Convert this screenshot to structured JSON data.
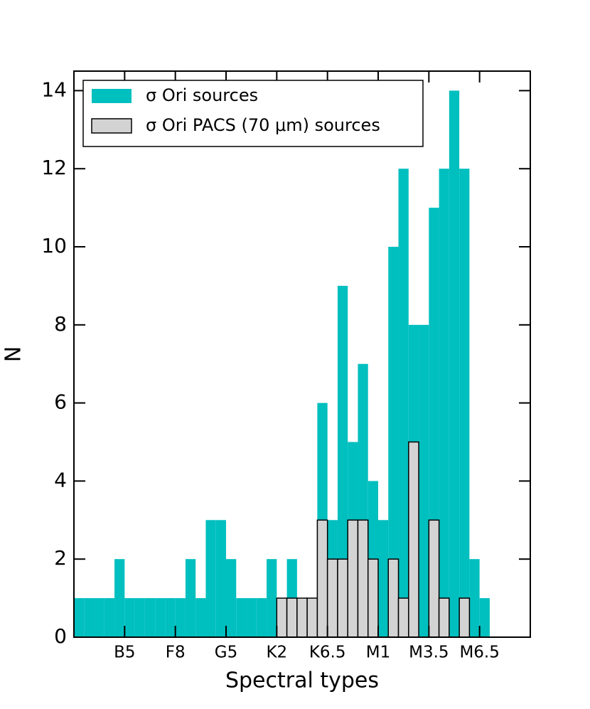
{
  "chart_data": {
    "type": "histogram",
    "xlabel": "Spectral types",
    "ylabel": "N",
    "bins": [
      0,
      1,
      2,
      3,
      4,
      5,
      6,
      7,
      8,
      9,
      10,
      11,
      12,
      13,
      14,
      15,
      16,
      17,
      18,
      19,
      20,
      21,
      22,
      23,
      24,
      25,
      26,
      27,
      28,
      29,
      30,
      31,
      32,
      33,
      34,
      35,
      36,
      37,
      38,
      39,
      40,
      41,
      42,
      43,
      44,
      45
    ],
    "series": [
      {
        "name": "σ Ori sources",
        "color": "#00bfbf",
        "edgecolor": null,
        "values": [
          1,
          1,
          1,
          1,
          2,
          1,
          1,
          1,
          1,
          1,
          1,
          2,
          1,
          3,
          3,
          2,
          1,
          1,
          1,
          2,
          1,
          2,
          1,
          1,
          6,
          3,
          9,
          5,
          7,
          4,
          3,
          10,
          12,
          8,
          8,
          11,
          12,
          14,
          12,
          2,
          1,
          0,
          0,
          0,
          0
        ]
      },
      {
        "name": "σ Ori PACS (70 μm) sources",
        "color": "#d3d3d3",
        "edgecolor": "#000000",
        "values": [
          0,
          0,
          0,
          0,
          0,
          0,
          0,
          0,
          0,
          0,
          0,
          0,
          0,
          0,
          0,
          0,
          0,
          0,
          0,
          0,
          1,
          1,
          1,
          1,
          3,
          2,
          2,
          3,
          3,
          2,
          0,
          2,
          1,
          5,
          0,
          3,
          1,
          0,
          1,
          0,
          0,
          0,
          0,
          0,
          0
        ]
      }
    ],
    "xlim": [
      0,
      45
    ],
    "xticks": [
      {
        "value": 5,
        "label": "B5"
      },
      {
        "value": 10,
        "label": "F8"
      },
      {
        "value": 15,
        "label": "G5"
      },
      {
        "value": 20,
        "label": "K2"
      },
      {
        "value": 25,
        "label": "K6.5"
      },
      {
        "value": 30,
        "label": "M1"
      },
      {
        "value": 35,
        "label": "M3.5"
      },
      {
        "value": 40,
        "label": "M6.5"
      }
    ],
    "ylim": [
      0,
      14.5
    ],
    "yticks": [
      0,
      2,
      4,
      6,
      8,
      10,
      12,
      14
    ],
    "legend": "upper left",
    "grid": false
  }
}
